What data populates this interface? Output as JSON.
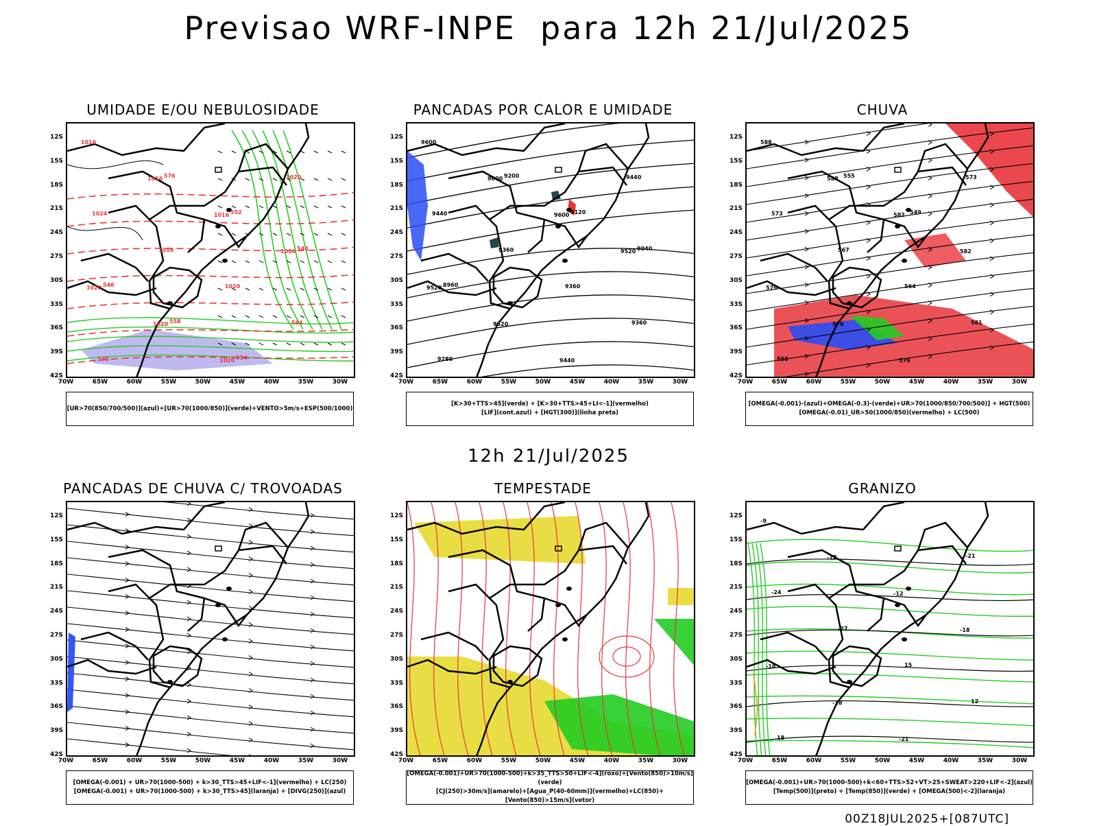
{
  "title": "Previsao WRF-INPE  para 12h 21/Jul/2025",
  "subtitle": "12h 21/Jul/2025",
  "footer": "00Z18JUL2025+[087UTC]",
  "y_ticks": [
    "12S",
    "15S",
    "18S",
    "21S",
    "24S",
    "27S",
    "30S",
    "33S",
    "36S",
    "39S",
    "42S"
  ],
  "x_ticks": [
    "70W",
    "65W",
    "60W",
    "55W",
    "50W",
    "45W",
    "40W",
    "35W",
    "30W"
  ],
  "panels": [
    {
      "title": "UMIDADE E/OU NEBULOSIDADE",
      "legend": [
        "[UR>70(850/700/500)](azul)+[UR>70(1000/850)](verde)+VENTO>5m/s+ESP(500/1000)"
      ],
      "contour_labels": [
        "1016",
        "1016",
        "1016",
        "1016",
        "1020",
        "1020",
        "1020",
        "1020",
        "1024",
        "1016",
        "1020",
        "564",
        "570",
        "576",
        "552",
        "540",
        "546",
        "558",
        "534"
      ]
    },
    {
      "title": "PANCADAS POR CALOR E UMIDADE",
      "legend": [
        "[K>30+TTS>45](verde) + [K>30+TTS>45+LI<-1](vermelho)",
        "[LIF](cont.azul) + [HGT(300)](linha preta)"
      ],
      "contour_labels": [
        "9600",
        "9600",
        "9600",
        "9520",
        "9520",
        "9520",
        "9440",
        "9440",
        "9440",
        "9360",
        "9360",
        "9360",
        "9280",
        "9200",
        "9120",
        "9040",
        "8960"
      ]
    },
    {
      "title": "CHUVA",
      "legend": [
        "[OMEGA(-0.001)-(azul)+OMEGA(-0.3)-(verde)+UR>70(1000/850/700/500)] + HGT(500)",
        "[OMEGA(-0.01)_UR>50(1000/850)(vermelho) + LC(500)"
      ],
      "contour_labels": [
        "588",
        "588",
        "582",
        "582",
        "579",
        "576",
        "576",
        "573",
        "573",
        "567",
        "564",
        "561",
        "558",
        "555",
        "549"
      ]
    },
    {
      "title": "PANCADAS DE CHUVA C/ TROVOADAS",
      "legend": [
        "[OMEGA(-0.001) + UR>70(1000-500) + k>30_TTS>45+LIF<-1](vermelho) + LC(250)",
        "[OMEGA(-0.001) + UR>70(1000-500) + k>30_TTS>45](laranja) + [DIVG(250)](azul)"
      ],
      "contour_labels": []
    },
    {
      "title": "TEMPESTADE",
      "legend": [
        "[OMEGA(-0.001)+UR>70(1000-500)+k>35_TTS>50+LIF<-4](roxo)+[Vento(850)>10m/s](verde)",
        "[CJ(250)>30m/s](amarelo)+[Agua_P(40-60mm)](vermelho)+LC(850)+[Vento(850)>15m/s](vetor)"
      ],
      "contour_labels": []
    },
    {
      "title": "GRANIZO",
      "legend": [
        "[OMEGA(-0.001)+UR>70(1000-500)+k<60+TTS>52+VT>25+SWEAT>220+LIF<-2](azul)",
        "[Temp(500)](preto) + [Temp(850)](verde) + [OMEGA(500)<-2](laranja)"
      ],
      "contour_labels": [
        "-9",
        "-12",
        "-12",
        "-18",
        "-18",
        "-18",
        "-21",
        "-21",
        "-24",
        "-27",
        "15",
        "12",
        "18"
      ]
    }
  ],
  "colors": {
    "red": "#e8343a",
    "green": "#22cc22",
    "blue": "#2a4ef5",
    "yellow": "#e7dc3a",
    "lavender": "#b7b2ee",
    "darkteal": "#1e4a48"
  }
}
